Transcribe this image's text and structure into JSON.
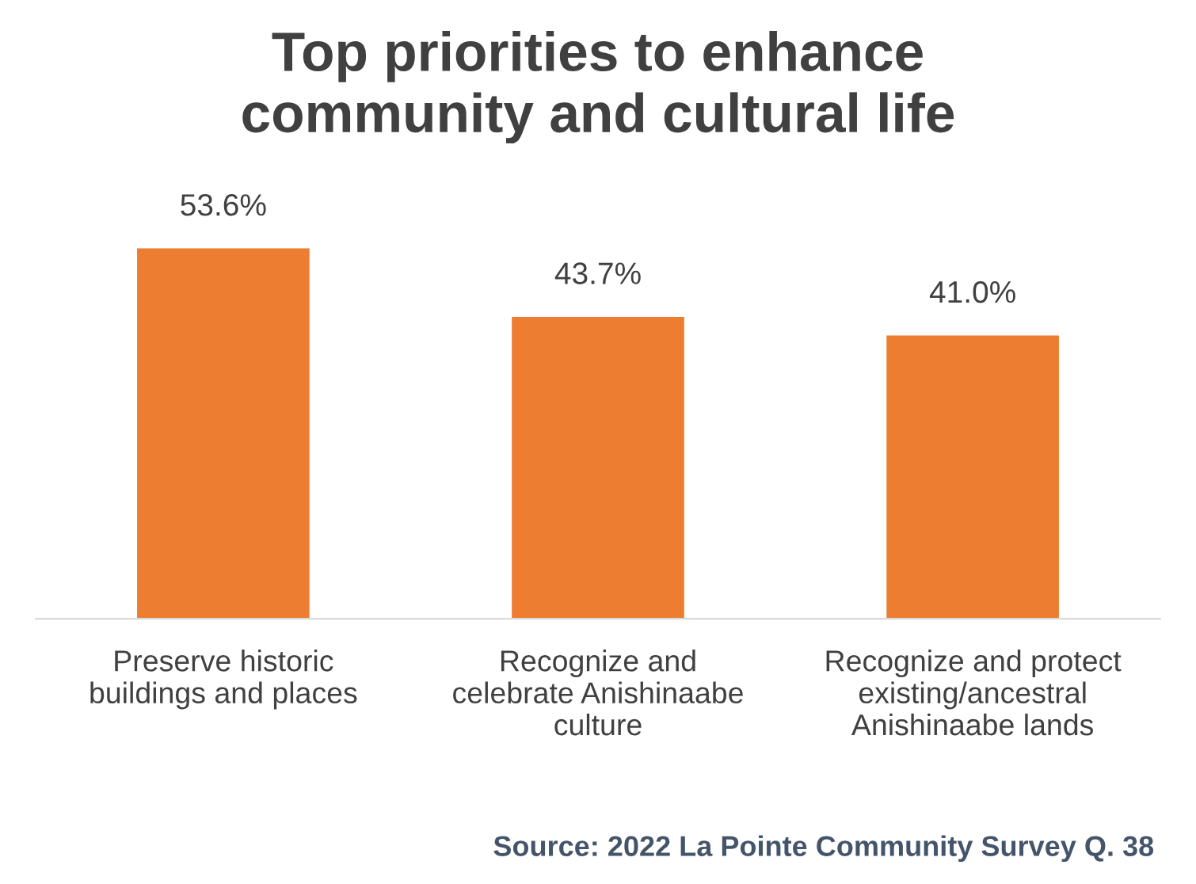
{
  "chart_data": {
    "type": "bar",
    "title": "Top priorities to enhance\ncommunity and cultural life",
    "categories": [
      "Preserve historic\nbuildings and places",
      "Recognize and\ncelebrate Anishinaabe\nculture",
      "Recognize and protect\nexisting/ancestral\nAnishinaabe lands"
    ],
    "values": [
      53.6,
      43.7,
      41.0
    ],
    "value_labels": [
      "53.6%",
      "43.7%",
      "41.0%"
    ],
    "color": "#ed7d31",
    "grid": false,
    "annotations": [
      "Source: 2022 La Pointe Community Survey Q. 38"
    ]
  }
}
